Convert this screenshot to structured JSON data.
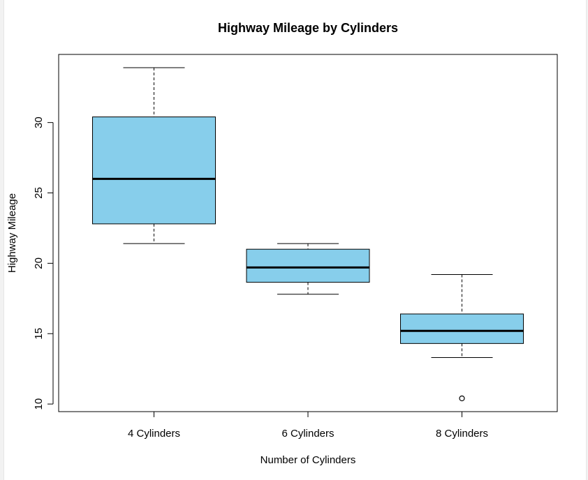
{
  "chart_data": {
    "type": "boxplot",
    "title": "Highway Mileage by Cylinders",
    "xlabel": "Number of Cylinders",
    "ylabel": "Highway Mileage",
    "categories": [
      "4 Cylinders",
      "6 Cylinders",
      "8 Cylinders"
    ],
    "boxes": [
      {
        "whisker_low": 21.4,
        "q1": 22.8,
        "median": 26.0,
        "q3": 30.4,
        "whisker_high": 33.9,
        "outliers": []
      },
      {
        "whisker_low": 17.8,
        "q1": 18.65,
        "median": 19.7,
        "q3": 21.0,
        "whisker_high": 21.4,
        "outliers": []
      },
      {
        "whisker_low": 13.3,
        "q1": 14.3,
        "median": 15.2,
        "q3": 16.4,
        "whisker_high": 19.2,
        "outliers": [
          10.4
        ]
      }
    ],
    "yticks": [
      10,
      15,
      20,
      25,
      30
    ],
    "ylim": [
      9.46,
      34.84
    ],
    "box_color": "#87ceeb",
    "grid": false
  }
}
